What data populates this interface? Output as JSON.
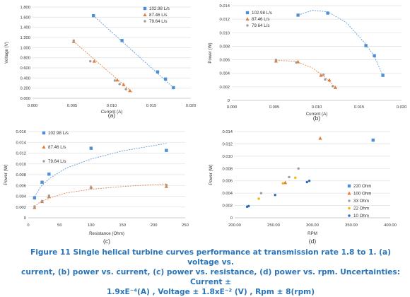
{
  "chart_data": [
    {
      "panel_label": "(a)",
      "type": "scatter",
      "ylabel": "Voltage (V)",
      "xlabel": "Current (A)",
      "xlim": [
        0.0,
        0.02
      ],
      "ylim": [
        0.0,
        1.8
      ],
      "x_ticks": [
        "0.000",
        "0.005",
        "0.010",
        "0.015",
        "0.020"
      ],
      "y_ticks": [
        "0.000",
        "0.200",
        "0.400",
        "0.600",
        "0.800",
        "1.000",
        "1.200",
        "1.400",
        "1.600",
        "1.800"
      ],
      "legend_position": "top-right",
      "series": [
        {
          "name": "102.98 L/s",
          "color": "#4e8fd4",
          "marker": "square",
          "points": [
            [
              0.0077,
              1.63
            ],
            [
              0.0113,
              1.14
            ],
            [
              0.0158,
              0.52
            ],
            [
              0.0168,
              0.38
            ],
            [
              0.0178,
              0.21
            ]
          ],
          "trend": [
            [
              0.0077,
              1.63
            ],
            [
              0.0178,
              0.21
            ]
          ]
        },
        {
          "name": "87.46 L/s",
          "color": "#e07b39",
          "marker": "triangle",
          "points": [
            [
              0.0052,
              1.12
            ],
            [
              0.0078,
              0.73
            ],
            [
              0.0107,
              0.36
            ],
            [
              0.0115,
              0.27
            ],
            [
              0.0123,
              0.15
            ]
          ],
          "trend": [
            [
              0.0052,
              1.12
            ],
            [
              0.0126,
              0.12
            ]
          ]
        },
        {
          "name": "79.64 L/s",
          "color": "#9e9e9e",
          "marker": "dot",
          "points": [
            [
              0.0052,
              1.14
            ],
            [
              0.0073,
              0.73
            ],
            [
              0.0104,
              0.35
            ],
            [
              0.011,
              0.28
            ],
            [
              0.0118,
              0.18
            ]
          ],
          "trend": []
        }
      ]
    },
    {
      "panel_label": "(b)",
      "type": "scatter",
      "ylabel": "Power (W)",
      "xlabel": "Current (A)",
      "xlim": [
        0.0,
        0.02
      ],
      "ylim": [
        0.0,
        0.014
      ],
      "x_ticks": [
        "0.000",
        "0.005",
        "0.010",
        "0.015",
        "0.020"
      ],
      "y_ticks": [
        "0",
        "0.002",
        "0.004",
        "0.006",
        "0.008",
        "0.010",
        "0.012",
        "0.014"
      ],
      "legend_position": "top-left",
      "series": [
        {
          "name": "102.98 L/s",
          "color": "#4e8fd4",
          "marker": "square",
          "points": [
            [
              0.0078,
              0.0126
            ],
            [
              0.0113,
              0.0129
            ],
            [
              0.0158,
              0.0081
            ],
            [
              0.0168,
              0.0066
            ],
            [
              0.0178,
              0.0037
            ]
          ],
          "trend": [
            [
              0.0078,
              0.0126
            ],
            [
              0.0095,
              0.0133
            ],
            [
              0.0113,
              0.0131
            ],
            [
              0.0135,
              0.0115
            ],
            [
              0.0158,
              0.0083
            ],
            [
              0.0168,
              0.0065
            ],
            [
              0.0178,
              0.0037
            ]
          ]
        },
        {
          "name": "87.46 L/s",
          "color": "#e07b39",
          "marker": "triangle",
          "points": [
            [
              0.0052,
              0.0058
            ],
            [
              0.0078,
              0.0057
            ],
            [
              0.0105,
              0.0037
            ],
            [
              0.0115,
              0.003
            ],
            [
              0.0122,
              0.0019
            ]
          ],
          "trend": [
            [
              0.0052,
              0.0059
            ],
            [
              0.0075,
              0.0058
            ],
            [
              0.0095,
              0.0048
            ],
            [
              0.011,
              0.0034
            ],
            [
              0.0124,
              0.0017
            ]
          ]
        },
        {
          "name": "79.64 L/s",
          "color": "#9e9e9e",
          "marker": "dot",
          "points": [
            [
              0.0052,
              0.006
            ],
            [
              0.0076,
              0.0056
            ],
            [
              0.0108,
              0.0038
            ],
            [
              0.011,
              0.0031
            ],
            [
              0.0119,
              0.0021
            ]
          ],
          "trend": []
        }
      ]
    },
    {
      "panel_label": "(c)",
      "type": "scatter",
      "ylabel": "Power (W)",
      "xlabel": "Resistance (Ohm)",
      "xlim": [
        0,
        250
      ],
      "ylim": [
        0.0,
        0.016
      ],
      "x_ticks": [
        "0",
        "50",
        "100",
        "150",
        "200",
        "250"
      ],
      "y_ticks": [
        "0",
        "0.002",
        "0.004",
        "0.006",
        "0.008",
        "0.010",
        "0.012",
        "0.014",
        "0.016"
      ],
      "legend_position": "top-left",
      "series": [
        {
          "name": "102.98 L/s",
          "color": "#4e8fd4",
          "marker": "square",
          "points": [
            [
              10,
              0.0037
            ],
            [
              22,
              0.0066
            ],
            [
              33,
              0.0081
            ],
            [
              100,
              0.0129
            ],
            [
              220,
              0.0125
            ]
          ],
          "trend": [
            [
              10,
              0.0039
            ],
            [
              20,
              0.0058
            ],
            [
              35,
              0.0074
            ],
            [
              60,
              0.0092
            ],
            [
              100,
              0.0109
            ],
            [
              150,
              0.0124
            ],
            [
              220,
              0.0138
            ]
          ]
        },
        {
          "name": "87.46 L/s",
          "color": "#e07b39",
          "marker": "triangle",
          "points": [
            [
              10,
              0.0019
            ],
            [
              22,
              0.003
            ],
            [
              33,
              0.0039
            ],
            [
              100,
              0.0057
            ],
            [
              220,
              0.0058
            ]
          ],
          "trend": [
            [
              10,
              0.0021
            ],
            [
              20,
              0.003
            ],
            [
              35,
              0.0037
            ],
            [
              60,
              0.0046
            ],
            [
              100,
              0.0053
            ],
            [
              150,
              0.0058
            ],
            [
              220,
              0.0063
            ]
          ]
        },
        {
          "name": "79.64 L/s",
          "color": "#9e9e9e",
          "marker": "dot",
          "points": [
            [
              10,
              0.0021
            ],
            [
              22,
              0.0031
            ],
            [
              33,
              0.0041
            ],
            [
              100,
              0.0055
            ],
            [
              220,
              0.0061
            ]
          ],
          "trend": []
        }
      ]
    },
    {
      "panel_label": "(d)",
      "type": "scatter",
      "ylabel": "Power (W)",
      "xlabel": "RPM",
      "xlim": [
        200,
        400
      ],
      "ylim": [
        0.0,
        0.014
      ],
      "x_ticks": [
        "200.00",
        "250.00",
        "300.00",
        "350.00",
        "400.00"
      ],
      "y_ticks": [
        "0",
        "0.002",
        "0.004",
        "0.006",
        "0.008",
        "0.010",
        "0.012",
        "0.014"
      ],
      "legend_position": "bottom-right",
      "series": [
        {
          "name": "220 Ohm",
          "color": "#4e8fd4",
          "marker": "square",
          "points": [
            [
              378,
              0.0126
            ]
          ],
          "trend": []
        },
        {
          "name": "100 Ohm",
          "color": "#e07b39",
          "marker": "triangle",
          "points": [
            [
              310,
              0.0129
            ],
            [
              265,
              0.0057
            ]
          ],
          "trend": []
        },
        {
          "name": "33 Ohm",
          "color": "#9e9e9e",
          "marker": "dot",
          "points": [
            [
              282,
              0.008
            ],
            [
              270,
              0.0066
            ],
            [
              234,
              0.004
            ]
          ],
          "trend": []
        },
        {
          "name": "22 Ohm",
          "color": "#f2b800",
          "marker": "dot",
          "points": [
            [
              278,
              0.0065
            ],
            [
              262,
              0.0056
            ],
            [
              231,
              0.0031
            ]
          ],
          "trend": []
        },
        {
          "name": "10 Ohm",
          "color": "#2f6ab3",
          "marker": "dot",
          "points": [
            [
              296,
              0.006
            ],
            [
              293,
              0.0058
            ],
            [
              252,
              0.0037
            ],
            [
              218,
              0.0019
            ],
            [
              216,
              0.0018
            ]
          ],
          "trend": []
        }
      ]
    }
  ],
  "caption": {
    "line1": "Figure 11 Single helical turbine curves performance at transmission rate 1.8 to 1. (a) voltage vs.",
    "line2": "current, (b) power vs. current, (c) power vs. resistance, (d) power vs. rpm. Uncertainties: Current ±",
    "line3": "1.9xE⁻⁴(A) , Voltage  ± 1.8xE⁻² (V) , Rpm  ± 8(rpm)"
  }
}
